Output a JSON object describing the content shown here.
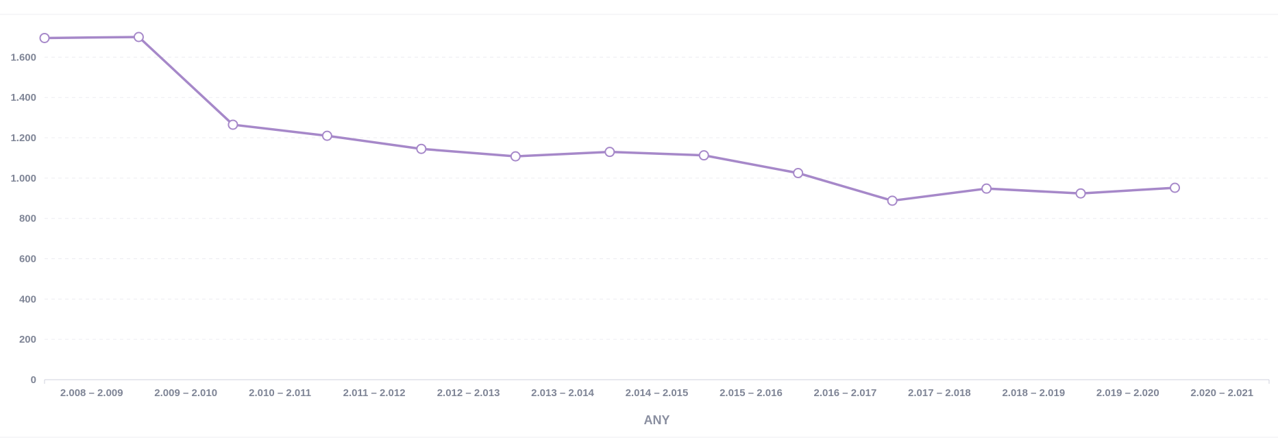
{
  "chart_data": {
    "type": "line",
    "title": "",
    "xlabel": "ANY",
    "ylabel": "",
    "categories": [
      "2.008 – 2.009",
      "2.009 – 2.010",
      "2.010 – 2.011",
      "2.011 – 2.012",
      "2.012 – 2.013",
      "2.013 – 2.014",
      "2.014 – 2.015",
      "2.015 – 2.016",
      "2.016 – 2.017",
      "2.017 – 2.018",
      "2.018 – 2.019",
      "2.019 – 2.020",
      "2.020 – 2.021"
    ],
    "y_ticks": [
      0,
      200,
      400,
      600,
      800,
      1000,
      1200,
      1400,
      1600
    ],
    "y_tick_labels": [
      "0",
      "200",
      "400",
      "600",
      "800",
      "1.000",
      "1.200",
      "1.400",
      "1.600"
    ],
    "ylim": [
      0,
      1700
    ],
    "series": [
      {
        "name": "",
        "color": "#a688c9",
        "values": [
          1695,
          1700,
          1265,
          1210,
          1145,
          1108,
          1130,
          1113,
          1025,
          888,
          948,
          924,
          952
        ]
      }
    ],
    "grid": true,
    "legend": "none"
  }
}
